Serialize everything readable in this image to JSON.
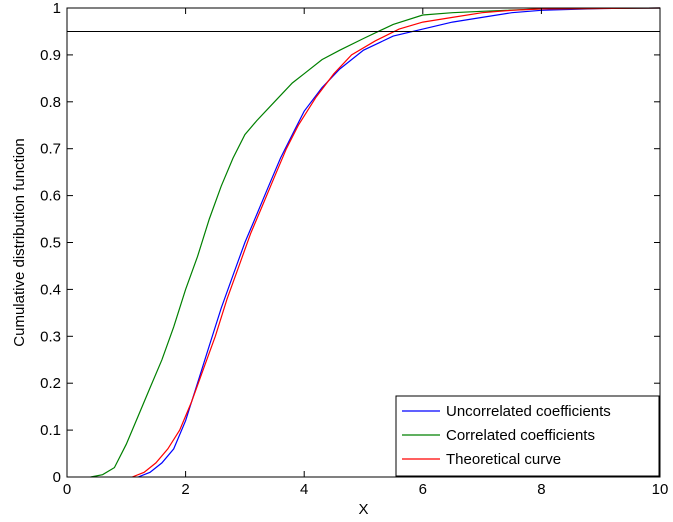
{
  "chart_data": {
    "type": "line",
    "xlabel": "X",
    "ylabel": "Cumulative distribution function",
    "xlim": [
      0,
      10
    ],
    "ylim": [
      0,
      1
    ],
    "xticks": [
      "0",
      "2",
      "4",
      "6",
      "8",
      "10"
    ],
    "yticks": [
      "0",
      "0.1",
      "0.2",
      "0.3",
      "0.4",
      "0.5",
      "0.6",
      "0.7",
      "0.8",
      "0.9",
      "1"
    ],
    "grid": false,
    "legend_position": "bottom-right",
    "reference_line": {
      "y": 0.95,
      "color": "#000000"
    },
    "series": [
      {
        "name": "Uncorrelated coefficients",
        "color": "#0000ff",
        "x": [
          1.2,
          1.4,
          1.6,
          1.8,
          2.0,
          2.2,
          2.4,
          2.6,
          2.8,
          3.0,
          3.2,
          3.4,
          3.6,
          3.8,
          4.0,
          4.3,
          4.6,
          5.0,
          5.5,
          6.0,
          6.5,
          7.0,
          7.5,
          8.0,
          9.0,
          10.0
        ],
        "y": [
          0.0,
          0.01,
          0.03,
          0.06,
          0.12,
          0.2,
          0.28,
          0.36,
          0.43,
          0.5,
          0.56,
          0.62,
          0.68,
          0.73,
          0.78,
          0.83,
          0.87,
          0.91,
          0.94,
          0.955,
          0.97,
          0.98,
          0.99,
          0.995,
          0.999,
          1.0
        ]
      },
      {
        "name": "Correlated coefficients",
        "color": "#008000",
        "x": [
          0.4,
          0.6,
          0.8,
          1.0,
          1.2,
          1.4,
          1.6,
          1.8,
          2.0,
          2.2,
          2.4,
          2.6,
          2.8,
          3.0,
          3.2,
          3.5,
          3.8,
          4.0,
          4.3,
          4.6,
          5.0,
          5.5,
          6.0,
          6.5,
          7.0,
          8.0,
          10.0
        ],
        "y": [
          0.0,
          0.005,
          0.02,
          0.07,
          0.13,
          0.19,
          0.25,
          0.32,
          0.4,
          0.47,
          0.55,
          0.62,
          0.68,
          0.73,
          0.76,
          0.8,
          0.84,
          0.86,
          0.89,
          0.91,
          0.935,
          0.965,
          0.985,
          0.99,
          0.993,
          0.998,
          1.0
        ]
      },
      {
        "name": "Theoretical curve",
        "color": "#ff0000",
        "x": [
          1.1,
          1.3,
          1.5,
          1.7,
          1.9,
          2.1,
          2.3,
          2.5,
          2.7,
          2.9,
          3.1,
          3.3,
          3.5,
          3.7,
          3.9,
          4.2,
          4.5,
          4.8,
          5.2,
          5.6,
          6.0,
          6.5,
          7.0,
          7.5,
          8.0,
          9.0,
          10.0
        ],
        "y": [
          0.0,
          0.01,
          0.03,
          0.06,
          0.1,
          0.16,
          0.23,
          0.3,
          0.38,
          0.45,
          0.52,
          0.58,
          0.64,
          0.7,
          0.75,
          0.81,
          0.86,
          0.9,
          0.93,
          0.955,
          0.97,
          0.98,
          0.99,
          0.995,
          0.998,
          0.999,
          1.0
        ]
      }
    ]
  }
}
